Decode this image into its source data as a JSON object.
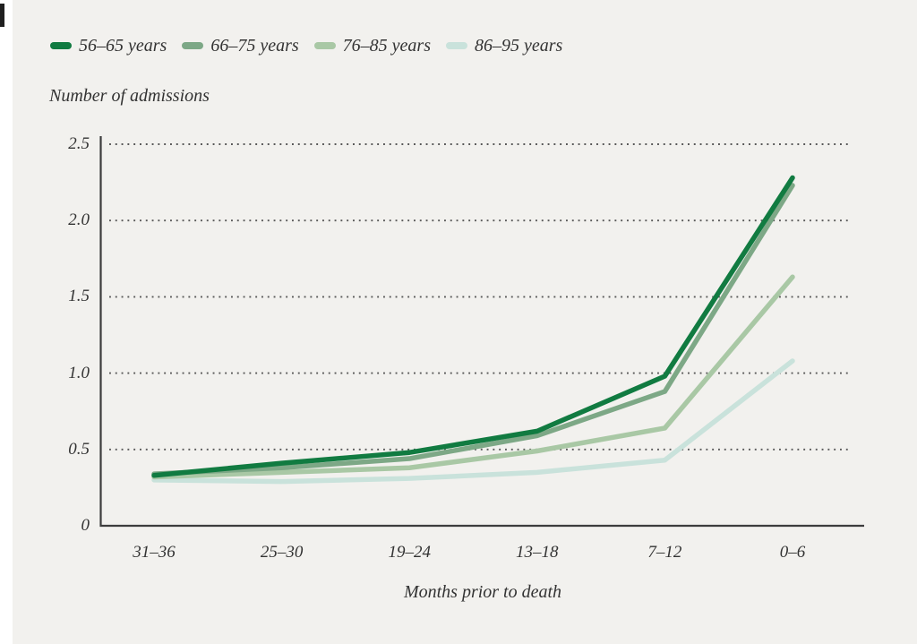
{
  "page": {
    "background_color": "#f2f1ee",
    "left_strip_color": "#ffffff",
    "corner_mark_color": "#1f1f1f",
    "text_color": "#333333",
    "axis_color": "#3d3d3d",
    "gridline_color": "#565656"
  },
  "chart_data": {
    "type": "line",
    "title": "",
    "ylabel": "Number of admissions",
    "xlabel": "Months prior to death",
    "categories": [
      "31–36",
      "25–30",
      "19–24",
      "13–18",
      "7–12",
      "0–6"
    ],
    "series": [
      {
        "name": "56–65 years",
        "color": "#117b41",
        "values": [
          0.33,
          0.41,
          0.48,
          0.62,
          0.98,
          2.28
        ]
      },
      {
        "name": "66–75 years",
        "color": "#7da886",
        "values": [
          0.34,
          0.38,
          0.44,
          0.59,
          0.88,
          2.23
        ]
      },
      {
        "name": "76–85 years",
        "color": "#a9c8a5",
        "values": [
          0.32,
          0.35,
          0.38,
          0.49,
          0.64,
          1.63
        ]
      },
      {
        "name": "86–95 years",
        "color": "#c9e2db",
        "values": [
          0.3,
          0.29,
          0.31,
          0.35,
          0.43,
          1.08
        ]
      }
    ],
    "yticks": [
      0,
      0.5,
      1.0,
      1.5,
      2.0,
      2.5
    ],
    "ytick_labels": [
      "0",
      "0.5",
      "1.0",
      "1.5",
      "2.0",
      "2.5"
    ],
    "ylim": [
      0,
      2.5
    ],
    "grid": "dotted horizontal",
    "legend_position": "top-left"
  }
}
